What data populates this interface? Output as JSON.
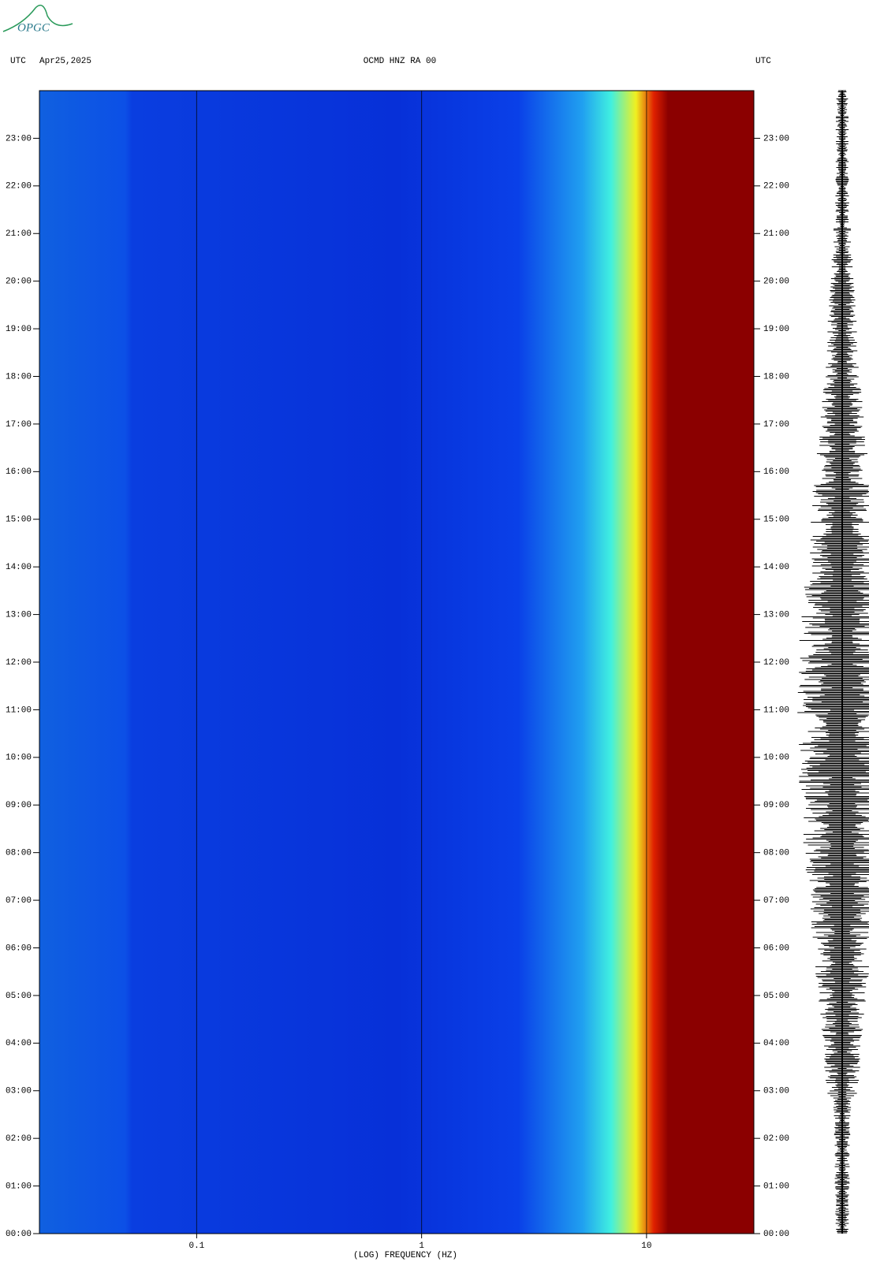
{
  "logo": "OPGC",
  "chart_data": {
    "type": "spectrogram",
    "header_left_zone": "UTC",
    "date": "Apr25,2025",
    "title": "OCMD HNZ RA 00",
    "header_right_zone": "UTC",
    "xlabel": "(LOG) FREQUENCY (HZ)",
    "xscale": "log",
    "xlim": [
      0.02,
      30
    ],
    "xticks": [
      0.1,
      1,
      10
    ],
    "ylim": [
      0,
      24
    ],
    "yticks": [
      {
        "value": 0,
        "label": "00:00"
      },
      {
        "value": 1,
        "label": "01:00"
      },
      {
        "value": 2,
        "label": "02:00"
      },
      {
        "value": 3,
        "label": "03:00"
      },
      {
        "value": 4,
        "label": "04:00"
      },
      {
        "value": 5,
        "label": "05:00"
      },
      {
        "value": 6,
        "label": "06:00"
      },
      {
        "value": 7,
        "label": "07:00"
      },
      {
        "value": 8,
        "label": "08:00"
      },
      {
        "value": 9,
        "label": "09:00"
      },
      {
        "value": 10,
        "label": "10:00"
      },
      {
        "value": 11,
        "label": "11:00"
      },
      {
        "value": 12,
        "label": "12:00"
      },
      {
        "value": 13,
        "label": "13:00"
      },
      {
        "value": 14,
        "label": "14:00"
      },
      {
        "value": 15,
        "label": "15:00"
      },
      {
        "value": 16,
        "label": "16:00"
      },
      {
        "value": 17,
        "label": "17:00"
      },
      {
        "value": 18,
        "label": "18:00"
      },
      {
        "value": 19,
        "label": "19:00"
      },
      {
        "value": 20,
        "label": "20:00"
      },
      {
        "value": 21,
        "label": "21:00"
      },
      {
        "value": 22,
        "label": "22:00"
      },
      {
        "value": 23,
        "label": "23:00"
      }
    ]
  }
}
